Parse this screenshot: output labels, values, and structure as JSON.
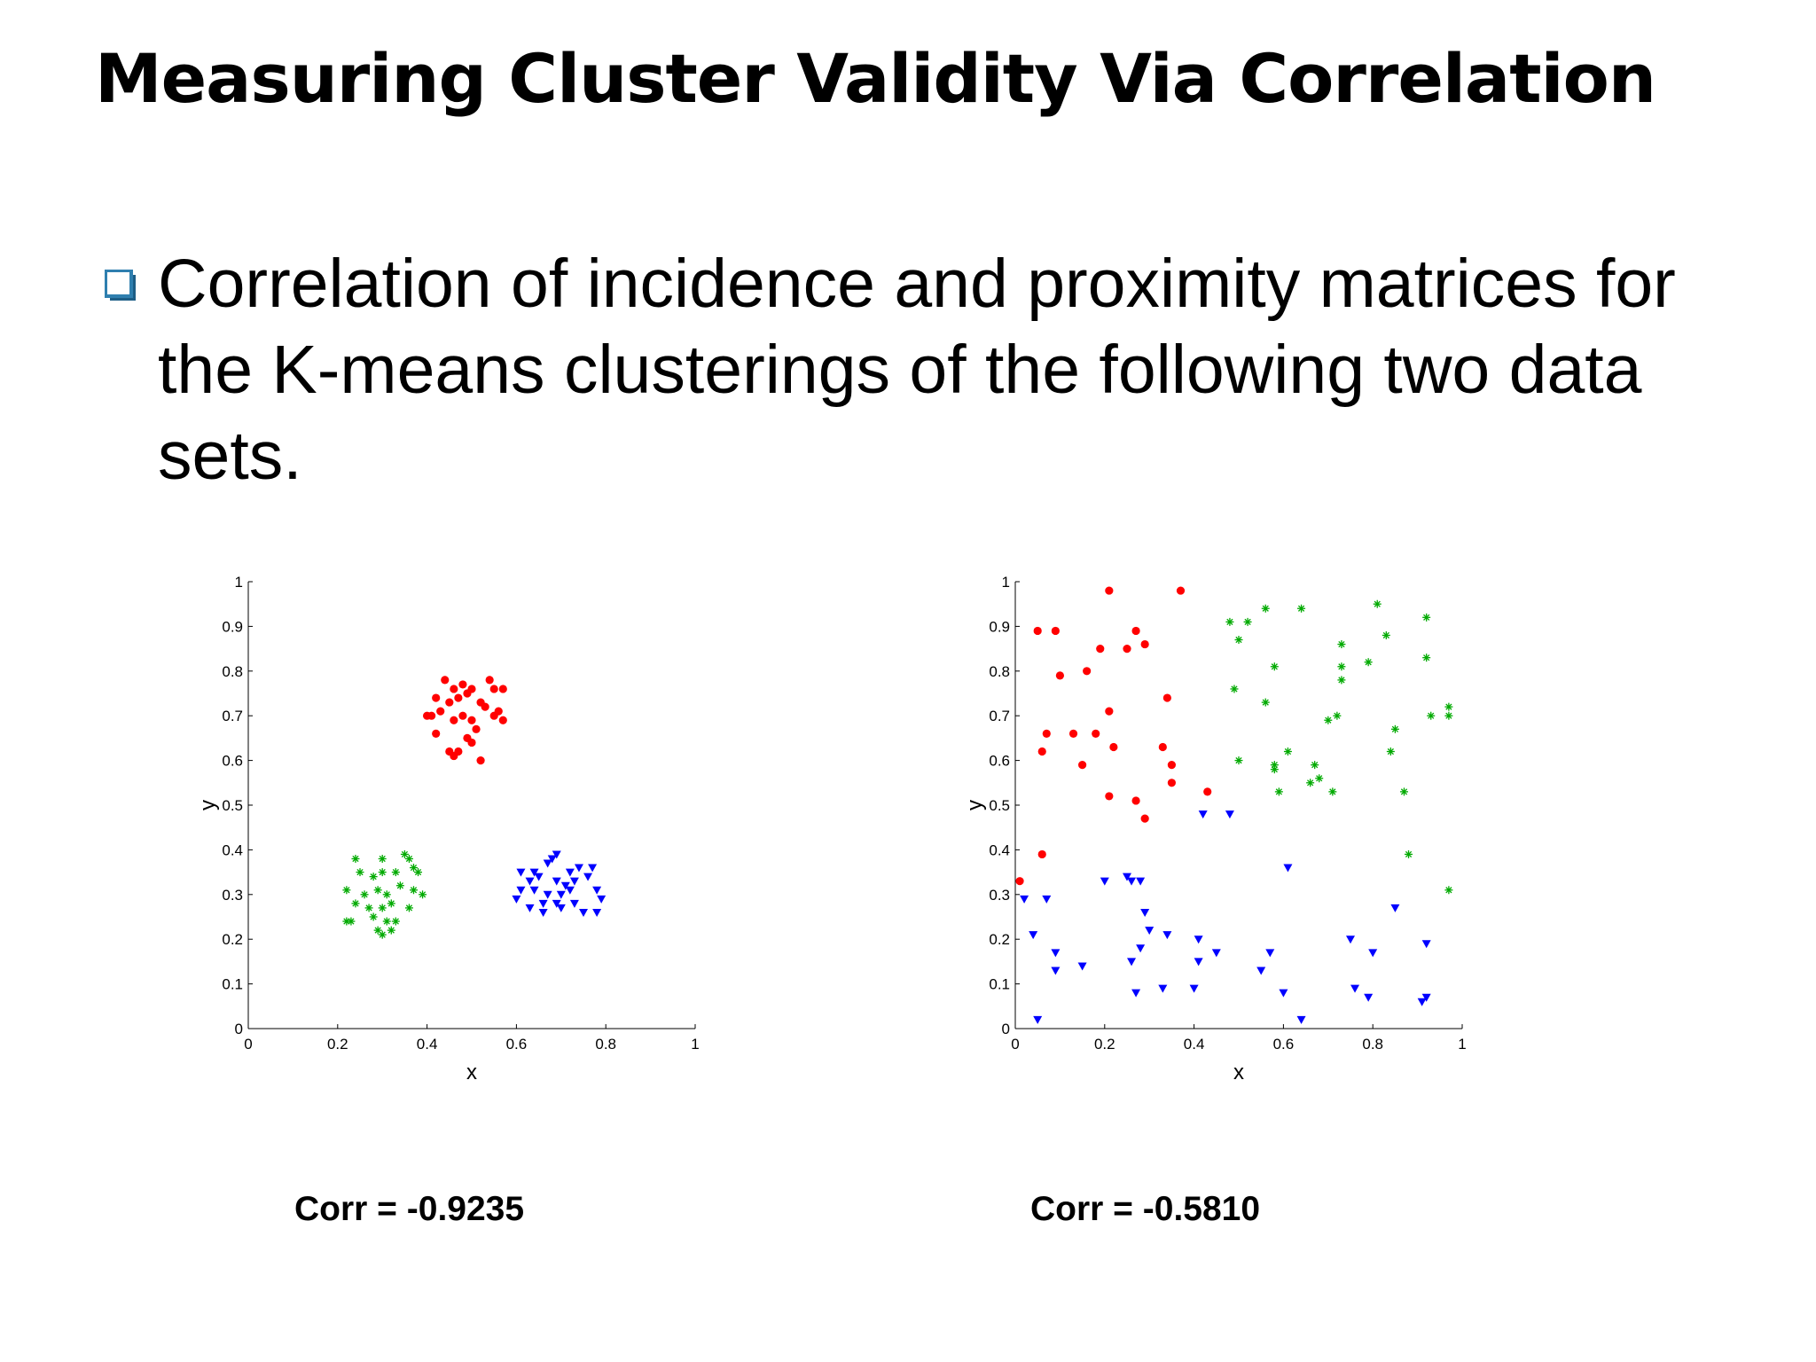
{
  "slide": {
    "title": "Measuring Cluster Validity Via Correlation",
    "bullet": "Correlation of incidence and proximity matrices for the K-means clusterings of the following two data sets."
  },
  "colors": {
    "bullet_box": "#2F7FAF",
    "cluster1": "#ff0000",
    "cluster2": "#00aa00",
    "cluster3": "#0000ff"
  },
  "chart_data": [
    {
      "type": "scatter",
      "xlabel": "x",
      "ylabel": "y",
      "xlim": [
        0,
        1
      ],
      "ylim": [
        0,
        1
      ],
      "xticks": [
        "0",
        "0.2",
        "0.4",
        "0.6",
        "0.8",
        "1"
      ],
      "yticks": [
        "0",
        "0.1",
        "0.2",
        "0.3",
        "0.4",
        "0.5",
        "0.6",
        "0.7",
        "0.8",
        "0.9",
        "1"
      ],
      "grid": false,
      "caption": "Corr = -0.9235",
      "series": [
        {
          "marker": "circle",
          "color": "#ff0000",
          "points": [
            [
              0.44,
              0.78
            ],
            [
              0.46,
              0.76
            ],
            [
              0.48,
              0.77
            ],
            [
              0.5,
              0.76
            ],
            [
              0.54,
              0.78
            ],
            [
              0.55,
              0.76
            ],
            [
              0.57,
              0.76
            ],
            [
              0.42,
              0.74
            ],
            [
              0.45,
              0.73
            ],
            [
              0.47,
              0.74
            ],
            [
              0.49,
              0.75
            ],
            [
              0.52,
              0.73
            ],
            [
              0.53,
              0.72
            ],
            [
              0.56,
              0.71
            ],
            [
              0.43,
              0.71
            ],
            [
              0.4,
              0.7
            ],
            [
              0.41,
              0.7
            ],
            [
              0.46,
              0.69
            ],
            [
              0.48,
              0.7
            ],
            [
              0.5,
              0.69
            ],
            [
              0.57,
              0.69
            ],
            [
              0.42,
              0.66
            ],
            [
              0.51,
              0.67
            ],
            [
              0.45,
              0.62
            ],
            [
              0.46,
              0.61
            ],
            [
              0.47,
              0.62
            ],
            [
              0.49,
              0.65
            ],
            [
              0.5,
              0.64
            ],
            [
              0.52,
              0.6
            ],
            [
              0.55,
              0.7
            ]
          ]
        },
        {
          "marker": "star",
          "color": "#00aa00",
          "points": [
            [
              0.24,
              0.38
            ],
            [
              0.3,
              0.38
            ],
            [
              0.35,
              0.39
            ],
            [
              0.36,
              0.38
            ],
            [
              0.25,
              0.35
            ],
            [
              0.28,
              0.34
            ],
            [
              0.3,
              0.35
            ],
            [
              0.33,
              0.35
            ],
            [
              0.37,
              0.36
            ],
            [
              0.38,
              0.35
            ],
            [
              0.22,
              0.31
            ],
            [
              0.26,
              0.3
            ],
            [
              0.29,
              0.31
            ],
            [
              0.31,
              0.3
            ],
            [
              0.34,
              0.32
            ],
            [
              0.37,
              0.31
            ],
            [
              0.39,
              0.3
            ],
            [
              0.24,
              0.28
            ],
            [
              0.27,
              0.27
            ],
            [
              0.3,
              0.27
            ],
            [
              0.32,
              0.28
            ],
            [
              0.36,
              0.27
            ],
            [
              0.28,
              0.25
            ],
            [
              0.31,
              0.24
            ],
            [
              0.33,
              0.24
            ],
            [
              0.22,
              0.24
            ],
            [
              0.23,
              0.24
            ],
            [
              0.29,
              0.22
            ],
            [
              0.3,
              0.21
            ],
            [
              0.32,
              0.22
            ]
          ]
        },
        {
          "marker": "triangle",
          "color": "#0000ff",
          "points": [
            [
              0.61,
              0.35
            ],
            [
              0.64,
              0.35
            ],
            [
              0.67,
              0.37
            ],
            [
              0.68,
              0.38
            ],
            [
              0.69,
              0.39
            ],
            [
              0.72,
              0.35
            ],
            [
              0.74,
              0.36
            ],
            [
              0.77,
              0.36
            ],
            [
              0.63,
              0.33
            ],
            [
              0.65,
              0.34
            ],
            [
              0.69,
              0.33
            ],
            [
              0.71,
              0.32
            ],
            [
              0.73,
              0.33
            ],
            [
              0.76,
              0.34
            ],
            [
              0.61,
              0.31
            ],
            [
              0.64,
              0.31
            ],
            [
              0.67,
              0.3
            ],
            [
              0.7,
              0.3
            ],
            [
              0.72,
              0.31
            ],
            [
              0.78,
              0.31
            ],
            [
              0.6,
              0.29
            ],
            [
              0.66,
              0.28
            ],
            [
              0.69,
              0.28
            ],
            [
              0.73,
              0.28
            ],
            [
              0.79,
              0.29
            ],
            [
              0.63,
              0.27
            ],
            [
              0.66,
              0.26
            ],
            [
              0.7,
              0.27
            ],
            [
              0.75,
              0.26
            ],
            [
              0.78,
              0.26
            ]
          ]
        }
      ]
    },
    {
      "type": "scatter",
      "xlabel": "x",
      "ylabel": "y",
      "xlim": [
        0,
        1
      ],
      "ylim": [
        0,
        1
      ],
      "xticks": [
        "0",
        "0.2",
        "0.4",
        "0.6",
        "0.8",
        "1"
      ],
      "yticks": [
        "0",
        "0.1",
        "0.2",
        "0.3",
        "0.4",
        "0.5",
        "0.6",
        "0.7",
        "0.8",
        "0.9",
        "1"
      ],
      "grid": false,
      "caption": "Corr = -0.5810",
      "series": [
        {
          "marker": "circle",
          "color": "#ff0000",
          "points": [
            [
              0.21,
              0.98
            ],
            [
              0.37,
              0.98
            ],
            [
              0.05,
              0.89
            ],
            [
              0.09,
              0.89
            ],
            [
              0.27,
              0.89
            ],
            [
              0.29,
              0.86
            ],
            [
              0.19,
              0.85
            ],
            [
              0.25,
              0.85
            ],
            [
              0.1,
              0.79
            ],
            [
              0.16,
              0.8
            ],
            [
              0.34,
              0.74
            ],
            [
              0.21,
              0.71
            ],
            [
              0.07,
              0.66
            ],
            [
              0.13,
              0.66
            ],
            [
              0.18,
              0.66
            ],
            [
              0.06,
              0.62
            ],
            [
              0.22,
              0.63
            ],
            [
              0.33,
              0.63
            ],
            [
              0.15,
              0.59
            ],
            [
              0.35,
              0.59
            ],
            [
              0.35,
              0.55
            ],
            [
              0.43,
              0.53
            ],
            [
              0.21,
              0.52
            ],
            [
              0.27,
              0.51
            ],
            [
              0.29,
              0.47
            ],
            [
              0.06,
              0.39
            ],
            [
              0.01,
              0.33
            ]
          ]
        },
        {
          "marker": "star",
          "color": "#00aa00",
          "points": [
            [
              0.48,
              0.91
            ],
            [
              0.52,
              0.91
            ],
            [
              0.56,
              0.94
            ],
            [
              0.64,
              0.94
            ],
            [
              0.81,
              0.95
            ],
            [
              0.92,
              0.92
            ],
            [
              0.5,
              0.87
            ],
            [
              0.73,
              0.86
            ],
            [
              0.83,
              0.88
            ],
            [
              0.58,
              0.81
            ],
            [
              0.73,
              0.81
            ],
            [
              0.79,
              0.82
            ],
            [
              0.92,
              0.83
            ],
            [
              0.73,
              0.78
            ],
            [
              0.49,
              0.76
            ],
            [
              0.56,
              0.73
            ],
            [
              0.7,
              0.69
            ],
            [
              0.72,
              0.7
            ],
            [
              0.93,
              0.7
            ],
            [
              0.97,
              0.72
            ],
            [
              0.97,
              0.7
            ],
            [
              0.85,
              0.67
            ],
            [
              0.61,
              0.62
            ],
            [
              0.84,
              0.62
            ],
            [
              0.5,
              0.6
            ],
            [
              0.58,
              0.59
            ],
            [
              0.67,
              0.59
            ],
            [
              0.58,
              0.58
            ],
            [
              0.68,
              0.56
            ],
            [
              0.66,
              0.55
            ],
            [
              0.59,
              0.53
            ],
            [
              0.71,
              0.53
            ],
            [
              0.87,
              0.53
            ],
            [
              0.88,
              0.39
            ],
            [
              0.97,
              0.31
            ]
          ]
        },
        {
          "marker": "triangle",
          "color": "#0000ff",
          "points": [
            [
              0.42,
              0.48
            ],
            [
              0.48,
              0.48
            ],
            [
              0.61,
              0.36
            ],
            [
              0.25,
              0.34
            ],
            [
              0.2,
              0.33
            ],
            [
              0.26,
              0.33
            ],
            [
              0.28,
              0.33
            ],
            [
              0.02,
              0.29
            ],
            [
              0.07,
              0.29
            ],
            [
              0.29,
              0.26
            ],
            [
              0.85,
              0.27
            ],
            [
              0.3,
              0.22
            ],
            [
              0.04,
              0.21
            ],
            [
              0.34,
              0.21
            ],
            [
              0.41,
              0.2
            ],
            [
              0.75,
              0.2
            ],
            [
              0.92,
              0.19
            ],
            [
              0.28,
              0.18
            ],
            [
              0.09,
              0.17
            ],
            [
              0.45,
              0.17
            ],
            [
              0.57,
              0.17
            ],
            [
              0.8,
              0.17
            ],
            [
              0.26,
              0.15
            ],
            [
              0.41,
              0.15
            ],
            [
              0.09,
              0.13
            ],
            [
              0.15,
              0.14
            ],
            [
              0.55,
              0.13
            ],
            [
              0.33,
              0.09
            ],
            [
              0.4,
              0.09
            ],
            [
              0.76,
              0.09
            ],
            [
              0.27,
              0.08
            ],
            [
              0.6,
              0.08
            ],
            [
              0.79,
              0.07
            ],
            [
              0.92,
              0.07
            ],
            [
              0.91,
              0.06
            ],
            [
              0.05,
              0.02
            ],
            [
              0.64,
              0.02
            ]
          ]
        }
      ]
    }
  ]
}
